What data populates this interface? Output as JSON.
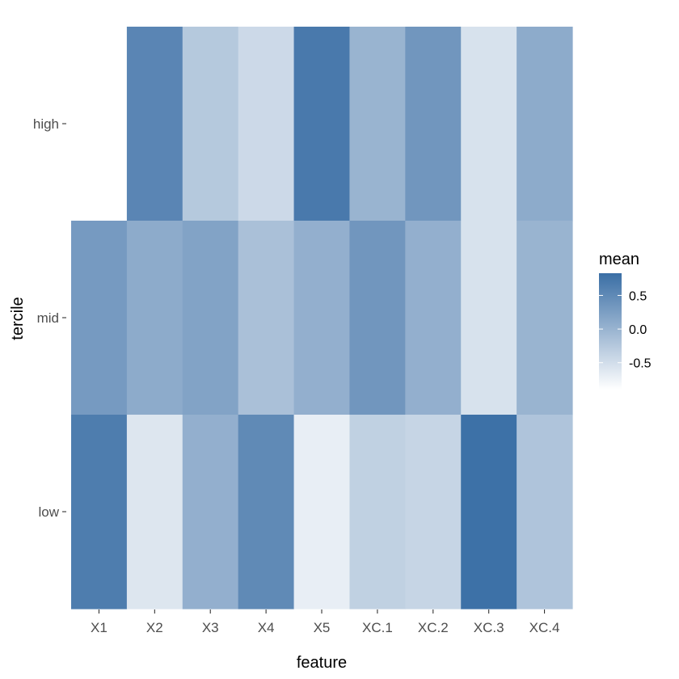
{
  "chart_data": {
    "type": "heatmap",
    "xlabel": "feature",
    "ylabel": "tercile",
    "x_categories": [
      "X1",
      "X2",
      "X3",
      "X4",
      "X5",
      "XC.1",
      "XC.2",
      "XC.3",
      "XC.4"
    ],
    "y_categories": [
      "high",
      "mid",
      "low"
    ],
    "values": [
      [
        null,
        0.55,
        -0.25,
        -0.45,
        0.7,
        0.0,
        0.35,
        -0.55,
        0.1
      ],
      [
        0.3,
        0.1,
        0.2,
        -0.15,
        0.05,
        0.35,
        0.05,
        -0.55,
        0.0
      ],
      [
        0.65,
        -0.6,
        0.05,
        0.5,
        -0.7,
        -0.35,
        -0.4,
        0.8,
        -0.2
      ]
    ],
    "legend": {
      "title": "mean",
      "ticks": [
        0.5,
        0.0,
        -0.5
      ],
      "tick_labels": [
        "0.5",
        "0.0",
        "-0.5"
      ],
      "range": [
        -0.9,
        0.83
      ],
      "low_color": "#ffffff",
      "high_color": "#3a6ea5",
      "position": "right"
    },
    "grid": false
  }
}
